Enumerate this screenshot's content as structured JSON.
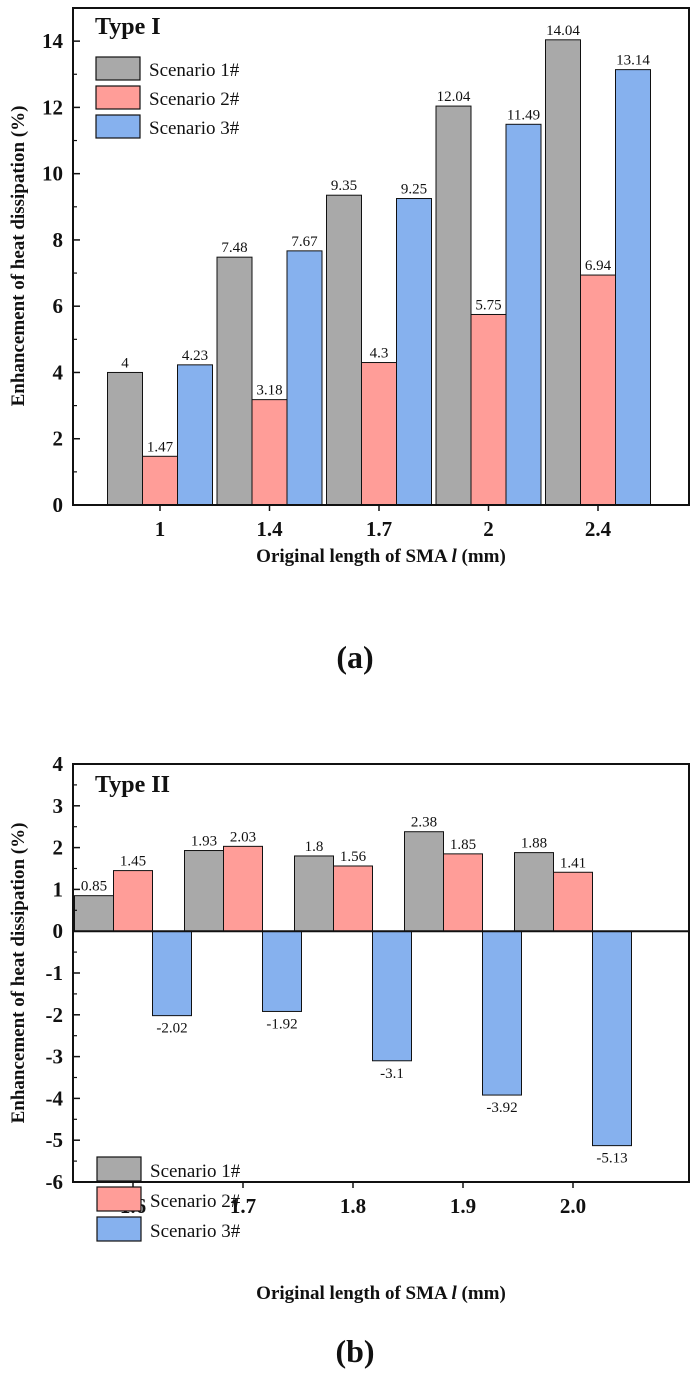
{
  "colors": {
    "scenario1": "#a9a9a9",
    "scenario2": "#ff9d98",
    "scenario3": "#86b1ee"
  },
  "chart_data": [
    {
      "type": "bar",
      "panel_label": "(a)",
      "annotation": "Type I",
      "xlabel": "Original length of SMA",
      "xlabel_symbol": "l",
      "xlabel_unit": "(mm)",
      "ylabel": "Enhancement of heat dissipation (%)",
      "ylim": [
        0,
        15
      ],
      "yticks": [
        0,
        2,
        4,
        6,
        8,
        10,
        12,
        14
      ],
      "categories": [
        "1",
        "1.4",
        "1.7",
        "2",
        "2.4"
      ],
      "legend_placement": "top-left",
      "series": [
        {
          "name": "Scenario 1#",
          "values": [
            4,
            7.48,
            9.35,
            12.04,
            14.04
          ],
          "labels": [
            "4",
            "7.48",
            "9.35",
            "12.04",
            "14.04"
          ]
        },
        {
          "name": "Scenario 2#",
          "values": [
            1.47,
            3.18,
            4.3,
            5.75,
            6.94
          ],
          "labels": [
            "1.47",
            "3.18",
            "4.3",
            "5.75",
            "6.94"
          ]
        },
        {
          "name": "Scenario 3#",
          "values": [
            4.23,
            7.67,
            9.25,
            11.49,
            13.14
          ],
          "labels": [
            "4.23",
            "7.67",
            "9.25",
            "11.49",
            "13.14"
          ]
        }
      ]
    },
    {
      "type": "bar",
      "panel_label": "(b)",
      "annotation": "Type II",
      "xlabel": "Original length of SMA",
      "xlabel_symbol": "l",
      "xlabel_unit": "(mm)",
      "ylabel": "Enhancement of heat dissipation (%)",
      "ylim": [
        -6,
        4
      ],
      "yticks": [
        -6,
        -5,
        -4,
        -3,
        -2,
        -1,
        0,
        1,
        2,
        3,
        4
      ],
      "categories": [
        "1.6",
        "1.7",
        "1.8",
        "1.9",
        "2.0"
      ],
      "legend_placement": "bottom-left",
      "series": [
        {
          "name": "Scenario 1#",
          "values": [
            0.85,
            1.93,
            1.8,
            2.38,
            1.88
          ],
          "labels": [
            "0.85",
            "1.93",
            "1.8",
            "2.38",
            "1.88"
          ]
        },
        {
          "name": "Scenario 2#",
          "values": [
            1.45,
            2.03,
            1.56,
            1.85,
            1.41
          ],
          "labels": [
            "1.45",
            "2.03",
            "1.56",
            "1.85",
            "1.41"
          ]
        },
        {
          "name": "Scenario 3#",
          "values": [
            -2.02,
            -1.92,
            -3.1,
            -3.92,
            -5.13
          ],
          "labels": [
            "-2.02",
            "-1.92",
            "-3.1",
            "-3.92",
            "-5.13"
          ]
        }
      ]
    }
  ]
}
